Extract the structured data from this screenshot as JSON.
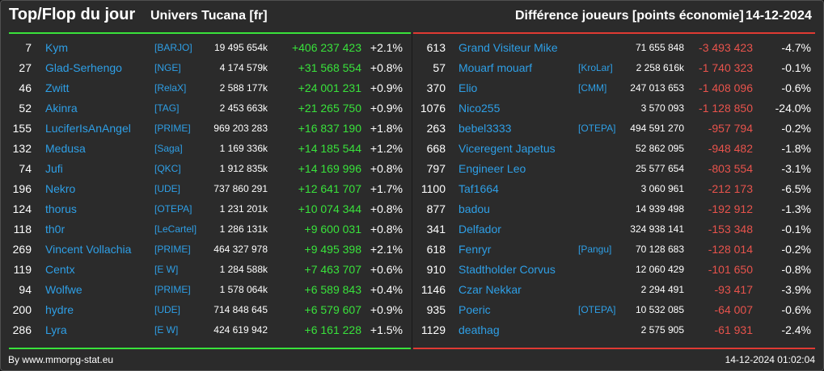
{
  "header": {
    "title": "Top/Flop du jour",
    "universe": "Univers Tucana [fr]",
    "difference": "Différence joueurs [points économie]",
    "date": "14-12-2024"
  },
  "colors": {
    "accent_top": "#39e23b",
    "accent_flop": "#e03a33",
    "name": "#2e9fe6"
  },
  "top": [
    {
      "rank": "7",
      "name": "Kym",
      "alliance": "[BARJO]",
      "points": "19 495 654k",
      "delta": "+406 237 423",
      "pct": "+2.1%"
    },
    {
      "rank": "27",
      "name": "Glad-Serhengo",
      "alliance": "[NGE]",
      "points": "4 174 579k",
      "delta": "+31 568 554",
      "pct": "+0.8%"
    },
    {
      "rank": "46",
      "name": "Zwitt",
      "alliance": "[RelaX]",
      "points": "2 588 177k",
      "delta": "+24 001 231",
      "pct": "+0.9%"
    },
    {
      "rank": "52",
      "name": "Akinra",
      "alliance": "[TAG]",
      "points": "2 453 663k",
      "delta": "+21 265 750",
      "pct": "+0.9%"
    },
    {
      "rank": "155",
      "name": "LuciferIsAnAngel",
      "alliance": "[PRIME]",
      "points": "969 203 283",
      "delta": "+16 837 190",
      "pct": "+1.8%"
    },
    {
      "rank": "132",
      "name": "Medusa",
      "alliance": "[Saga]",
      "points": "1 169 336k",
      "delta": "+14 185 544",
      "pct": "+1.2%"
    },
    {
      "rank": "74",
      "name": "Jufi",
      "alliance": "[QKC]",
      "points": "1 912 835k",
      "delta": "+14 169 996",
      "pct": "+0.8%"
    },
    {
      "rank": "196",
      "name": "Nekro",
      "alliance": "[UDE]",
      "points": "737 860 291",
      "delta": "+12 641 707",
      "pct": "+1.7%"
    },
    {
      "rank": "124",
      "name": "thorus",
      "alliance": "[OTEPA]",
      "points": "1 231 201k",
      "delta": "+10 074 344",
      "pct": "+0.8%"
    },
    {
      "rank": "118",
      "name": "th0r",
      "alliance": "[LeCartel]",
      "points": "1 286 131k",
      "delta": "+9 600 031",
      "pct": "+0.8%"
    },
    {
      "rank": "269",
      "name": "Vincent Vollachia",
      "alliance": "[PRIME]",
      "points": "464 327 978",
      "delta": "+9 495 398",
      "pct": "+2.1%"
    },
    {
      "rank": "119",
      "name": "Centx",
      "alliance": "[E W]",
      "points": "1 284 588k",
      "delta": "+7 463 707",
      "pct": "+0.6%"
    },
    {
      "rank": "94",
      "name": "Wolfwe",
      "alliance": "[PRIME]",
      "points": "1 578 064k",
      "delta": "+6 589 843",
      "pct": "+0.4%"
    },
    {
      "rank": "200",
      "name": "hydre",
      "alliance": "[UDE]",
      "points": "714 848 645",
      "delta": "+6 579 607",
      "pct": "+0.9%"
    },
    {
      "rank": "286",
      "name": "Lyra",
      "alliance": "[E W]",
      "points": "424 619 942",
      "delta": "+6 161 228",
      "pct": "+1.5%"
    }
  ],
  "flop": [
    {
      "rank": "613",
      "name": "Grand Visiteur Mike",
      "alliance": "",
      "points": "71 655 848",
      "delta": "-3 493 423",
      "pct": "-4.7%"
    },
    {
      "rank": "57",
      "name": "Mouarf mouarf",
      "alliance": "[KroLar]",
      "points": "2 258 616k",
      "delta": "-1 740 323",
      "pct": "-0.1%"
    },
    {
      "rank": "370",
      "name": "Elio",
      "alliance": "[CMM]",
      "points": "247 013 653",
      "delta": "-1 408 096",
      "pct": "-0.6%"
    },
    {
      "rank": "1076",
      "name": "Nico255",
      "alliance": "",
      "points": "3 570 093",
      "delta": "-1 128 850",
      "pct": "-24.0%"
    },
    {
      "rank": "263",
      "name": "bebel3333",
      "alliance": "[OTEPA]",
      "points": "494 591 270",
      "delta": "-957 794",
      "pct": "-0.2%"
    },
    {
      "rank": "668",
      "name": "Viceregent Japetus",
      "alliance": "",
      "points": "52 862 095",
      "delta": "-948 482",
      "pct": "-1.8%"
    },
    {
      "rank": "797",
      "name": "Engineer Leo",
      "alliance": "",
      "points": "25 577 654",
      "delta": "-803 554",
      "pct": "-3.1%"
    },
    {
      "rank": "1100",
      "name": "Taf1664",
      "alliance": "",
      "points": "3 060 961",
      "delta": "-212 173",
      "pct": "-6.5%"
    },
    {
      "rank": "877",
      "name": "badou",
      "alliance": "",
      "points": "14 939 498",
      "delta": "-192 912",
      "pct": "-1.3%"
    },
    {
      "rank": "341",
      "name": "Delfador",
      "alliance": "",
      "points": "324 938 141",
      "delta": "-153 348",
      "pct": "-0.1%"
    },
    {
      "rank": "618",
      "name": "Fenryr",
      "alliance": "[Pangu]",
      "points": "70 128 683",
      "delta": "-128 014",
      "pct": "-0.2%"
    },
    {
      "rank": "910",
      "name": "Stadtholder Corvus",
      "alliance": "",
      "points": "12 060 429",
      "delta": "-101 650",
      "pct": "-0.8%"
    },
    {
      "rank": "1146",
      "name": "Czar Nekkar",
      "alliance": "",
      "points": "2 294 491",
      "delta": "-93 417",
      "pct": "-3.9%"
    },
    {
      "rank": "935",
      "name": "Poeric",
      "alliance": "[OTEPA]",
      "points": "10 532 085",
      "delta": "-64 007",
      "pct": "-0.6%"
    },
    {
      "rank": "1129",
      "name": "deathag",
      "alliance": "",
      "points": "2 575 905",
      "delta": "-61 931",
      "pct": "-2.4%"
    }
  ],
  "footer": {
    "source": "By www.mmorpg-stat.eu",
    "timestamp": "14-12-2024 01:02:04"
  }
}
